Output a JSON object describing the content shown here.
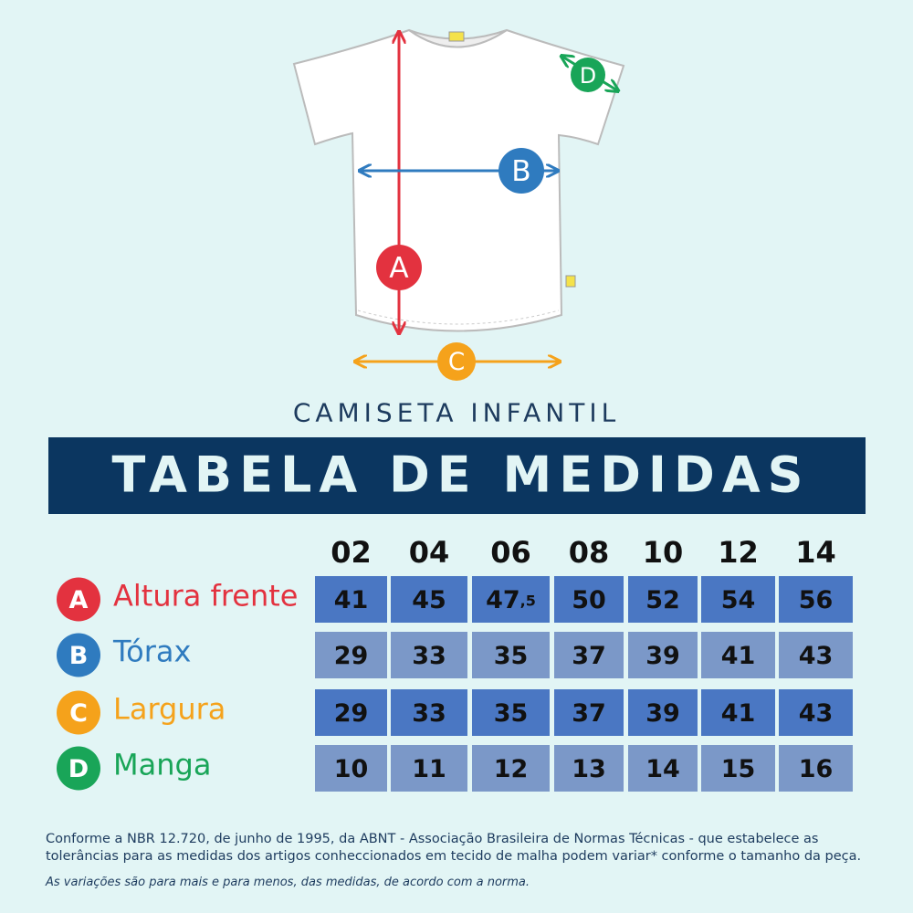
{
  "diagram": {
    "markers": [
      "A",
      "B",
      "C",
      "D"
    ]
  },
  "header": {
    "subtitle": "CAMISETA INFANTIL",
    "title": "TABELA DE MEDIDAS"
  },
  "table": {
    "sizes": [
      "02",
      "04",
      "06",
      "08",
      "10",
      "12",
      "14"
    ],
    "rows": [
      {
        "letter": "A",
        "label": "Altura frente",
        "color": "#e3323f",
        "values": [
          41,
          45,
          "47,5",
          50,
          52,
          54,
          56
        ]
      },
      {
        "letter": "B",
        "label": "Tórax",
        "color": "#2f7bbf",
        "values": [
          29,
          33,
          35,
          37,
          39,
          41,
          43
        ]
      },
      {
        "letter": "C",
        "label": "Largura",
        "color": "#f5a21b",
        "values": [
          29,
          33,
          35,
          37,
          39,
          41,
          43
        ]
      },
      {
        "letter": "D",
        "label": "Manga",
        "color": "#19a558",
        "values": [
          10,
          11,
          12,
          13,
          14,
          15,
          16
        ]
      }
    ]
  },
  "footer": {
    "note": "Conforme a NBR 12.720, de junho de 1995, da ABNT - Associação Brasileira de Normas Técnicas - que estabelece as tolerâncias para as medidas dos artigos conheccionados em tecido de malha podem variar* conforme o tamanho da peça.",
    "footnote": "As variações são para mais e para menos, das medidas, de acordo com a norma."
  }
}
